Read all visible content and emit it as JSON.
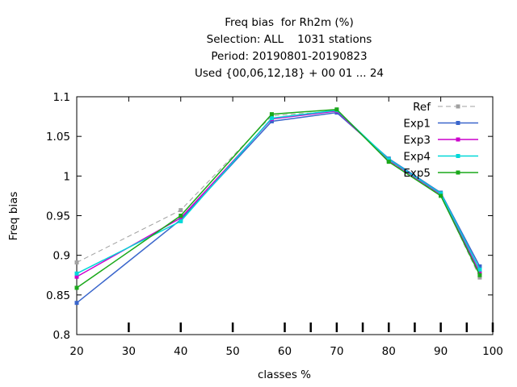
{
  "chart_data": {
    "type": "line",
    "title_lines": [
      "Freq bias  for Rh2m (%)",
      "Selection: ALL    1031 stations",
      "Period: 20190801-20190823",
      "Used {00,06,12,18} + 00 01 ... 24"
    ],
    "xlabel": "classes %",
    "ylabel": "Freq bias",
    "xlim": [
      20,
      100
    ],
    "ylim": [
      0.8,
      1.1
    ],
    "x_ticks": [
      20,
      30,
      40,
      50,
      60,
      70,
      80,
      90,
      100
    ],
    "y_ticks": [
      "0.8",
      "0.85",
      "0.9",
      "0.95",
      "1",
      "1.05",
      "1.1"
    ],
    "minor_ticks_bottom": [
      30,
      40,
      50,
      60,
      65,
      70,
      75,
      80,
      85,
      90,
      95,
      100
    ],
    "grid": false,
    "legend_position": "top-right",
    "series": [
      {
        "name": "Ref",
        "color": "#a0a0a0",
        "dashed": true,
        "x": [
          20,
          40,
          57.5,
          70,
          80,
          90,
          97.5
        ],
        "y": [
          0.891,
          0.957,
          1.076,
          1.082,
          1.019,
          0.976,
          0.872
        ]
      },
      {
        "name": "Exp1",
        "color": "#3a66cc",
        "dashed": false,
        "x": [
          20,
          40,
          57.5,
          70,
          80,
          90,
          97.5
        ],
        "y": [
          0.84,
          0.945,
          1.069,
          1.08,
          1.022,
          0.979,
          0.886
        ]
      },
      {
        "name": "Exp3",
        "color": "#cc00cc",
        "dashed": false,
        "x": [
          20,
          40,
          57.5,
          70,
          80,
          90,
          97.5
        ],
        "y": [
          0.873,
          0.947,
          1.072,
          1.082,
          1.02,
          0.977,
          0.878
        ]
      },
      {
        "name": "Exp4",
        "color": "#00d8d8",
        "dashed": false,
        "x": [
          20,
          40,
          57.5,
          70,
          80,
          90,
          97.5
        ],
        "y": [
          0.877,
          0.943,
          1.073,
          1.083,
          1.021,
          0.978,
          0.882
        ]
      },
      {
        "name": "Exp5",
        "color": "#1aa81a",
        "dashed": false,
        "x": [
          20,
          40,
          57.5,
          70,
          80,
          90,
          97.5
        ],
        "y": [
          0.859,
          0.95,
          1.078,
          1.084,
          1.018,
          0.975,
          0.875
        ]
      }
    ]
  }
}
